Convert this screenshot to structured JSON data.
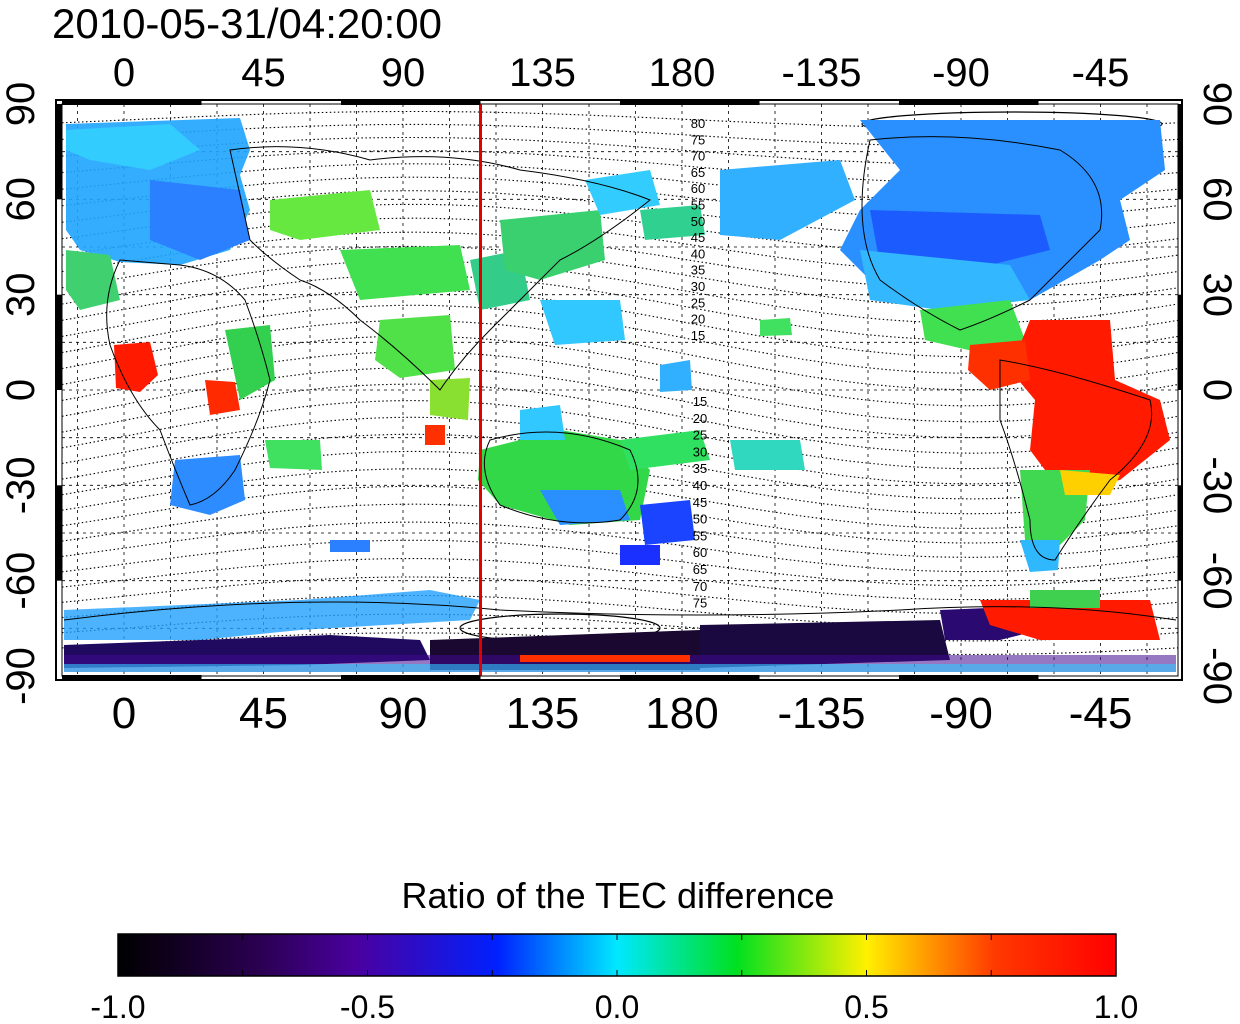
{
  "timestamp": "2010-05-31/04:20:00",
  "map": {
    "x_tick_labels": [
      "0",
      "45",
      "90",
      "135",
      "180",
      "-135",
      "-90",
      "-45"
    ],
    "y_tick_labels_left": [
      "90",
      "60",
      "30",
      "0",
      "-30",
      "-60",
      "-90"
    ],
    "y_tick_labels_right": [
      "90",
      "60",
      "30",
      "0",
      "-30",
      "-60",
      "-90"
    ],
    "meridian_marker_longitude": 115,
    "meridian_marker_color": "#e00000",
    "contour_labels_north": [
      "80",
      "75",
      "70",
      "65",
      "60",
      "55",
      "50",
      "45",
      "40",
      "35",
      "30",
      "25",
      "20",
      "15"
    ],
    "contour_labels_south": [
      "15",
      "20",
      "25",
      "30",
      "35",
      "40",
      "45",
      "50",
      "55",
      "60",
      "65",
      "70",
      "75"
    ]
  },
  "colorbar": {
    "title": "Ratio of the TEC difference",
    "tick_labels": [
      "-1.0",
      "-0.5",
      "0.0",
      "0.5",
      "1.0"
    ],
    "range": [
      -1.0,
      1.0
    ],
    "colors": [
      "#000000",
      "#3a0a78",
      "#1010ff",
      "#00e5ff",
      "#00e000",
      "#f0ff00",
      "#ff3000",
      "#ff0000"
    ]
  }
}
